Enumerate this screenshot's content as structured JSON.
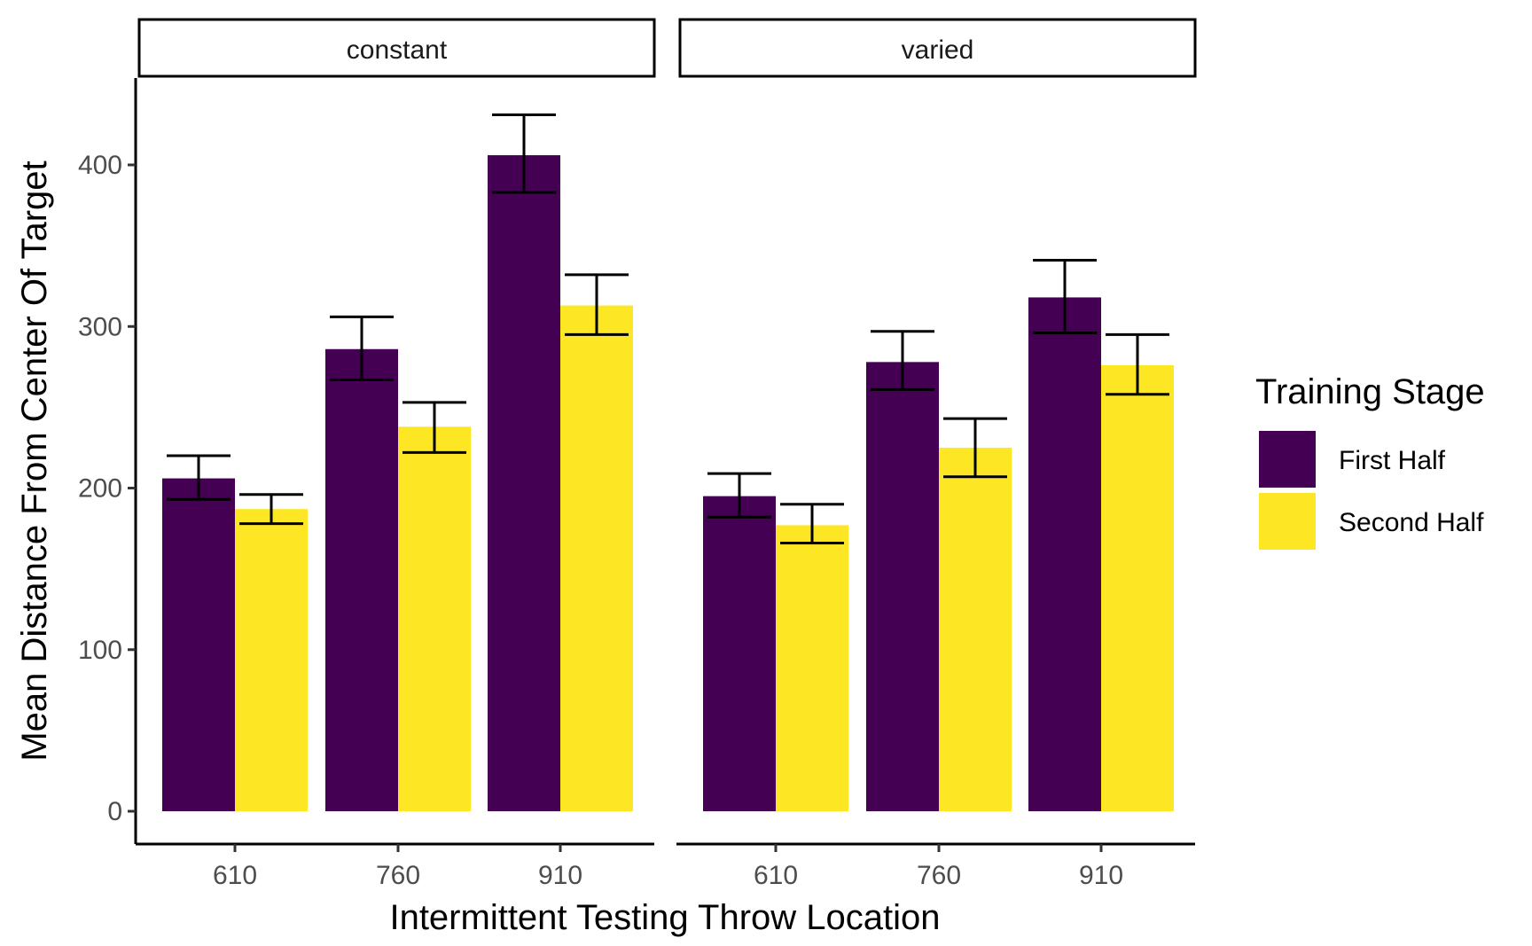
{
  "chart_data": {
    "type": "bar",
    "xlabel": "Intermittent Testing Throw Location",
    "ylabel": "Mean Distance From Center Of Target",
    "ylim": [
      0,
      450
    ],
    "yticks": [
      0,
      100,
      200,
      300,
      400
    ],
    "categories": [
      "610",
      "760",
      "910"
    ],
    "grid": false,
    "legend": {
      "title": "Training Stage",
      "position": "right",
      "entries": [
        "First Half",
        "Second Half"
      ]
    },
    "colors": {
      "First Half": "#440154",
      "Second Half": "#FDE725"
    },
    "panels": [
      {
        "label": "constant",
        "series": [
          {
            "name": "First Half",
            "values": [
              206,
              286,
              406
            ],
            "error_low": [
              193,
              267,
              383
            ],
            "error_high": [
              220,
              306,
              431
            ]
          },
          {
            "name": "Second Half",
            "values": [
              187,
              238,
              313
            ],
            "error_low": [
              178,
              222,
              295
            ],
            "error_high": [
              196,
              253,
              332
            ]
          }
        ]
      },
      {
        "label": "varied",
        "series": [
          {
            "name": "First Half",
            "values": [
              195,
              278,
              318
            ],
            "error_low": [
              182,
              261,
              296
            ],
            "error_high": [
              209,
              297,
              341
            ]
          },
          {
            "name": "Second Half",
            "values": [
              177,
              225,
              276
            ],
            "error_low": [
              166,
              207,
              258
            ],
            "error_high": [
              190,
              243,
              295
            ]
          }
        ]
      }
    ]
  }
}
